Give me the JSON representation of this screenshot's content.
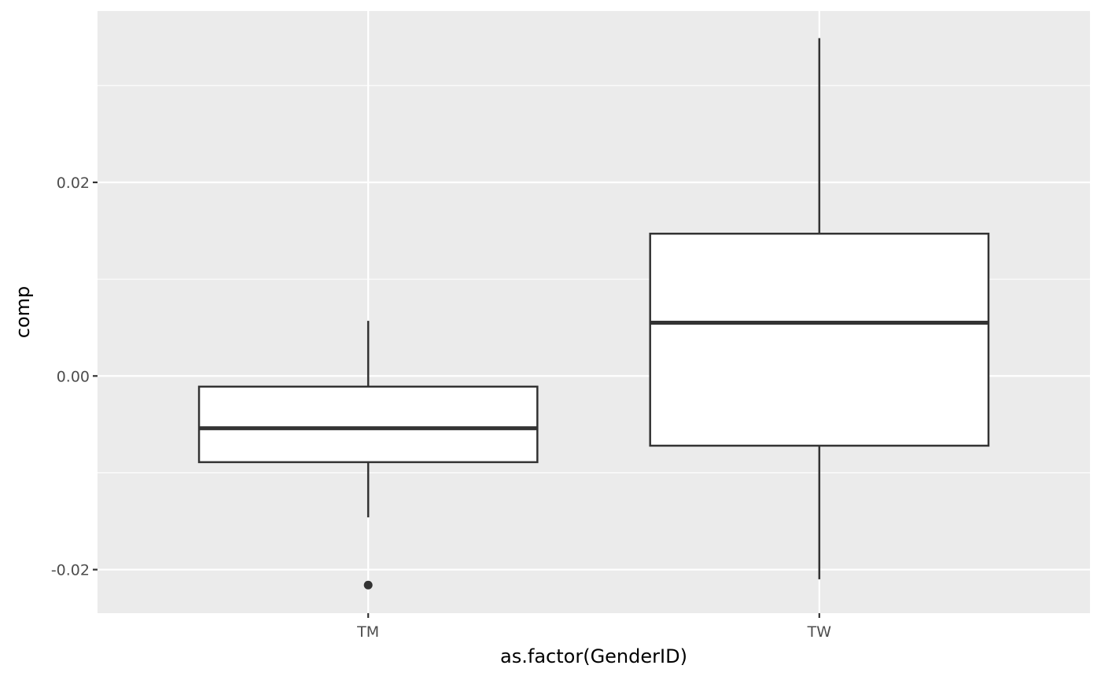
{
  "chart_data": {
    "type": "boxplot",
    "xlabel": "as.factor(GenderID)",
    "ylabel": "comp",
    "ylim": [
      -0.0245,
      0.0377
    ],
    "y_ticks": [
      -0.02,
      0.0,
      0.02
    ],
    "y_tick_labels": [
      "-0.02",
      "0.00",
      "0.02"
    ],
    "categories": [
      "TM",
      "TW"
    ],
    "boxes": [
      {
        "category": "TM",
        "whisker_low": -0.0146,
        "q1": -0.0089,
        "median": -0.0054,
        "q3": -0.0011,
        "whisker_high": 0.0057,
        "outliers": [
          -0.0216
        ]
      },
      {
        "category": "TW",
        "whisker_low": -0.021,
        "q1": -0.0072,
        "median": 0.0055,
        "q3": 0.0147,
        "whisker_high": 0.0349,
        "outliers": []
      }
    ],
    "grid": true,
    "colors": {
      "panel": "#ebebeb",
      "grid": "#ffffff",
      "box_line": "#333333",
      "box_fill": "#ffffff"
    }
  }
}
